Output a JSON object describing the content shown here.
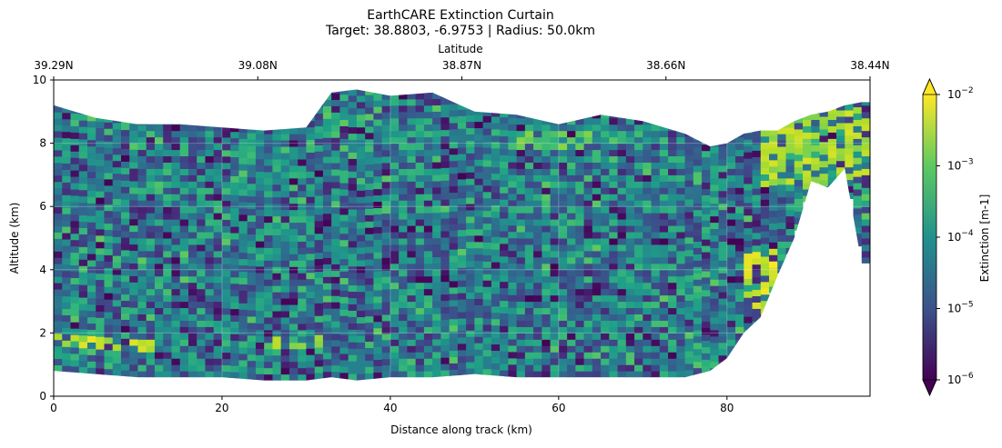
{
  "chart_data": {
    "type": "heatmap",
    "title": "EarthCARE Extinction Curtain",
    "subtitle": "Target: 38.8803, -6.9753 | Radius: 50.0km",
    "xlabel": "Distance along track (km)",
    "ylabel": "Altitude (km)",
    "top_axis_label": "Latitude",
    "xlim": [
      0,
      97
    ],
    "ylim": [
      0,
      10
    ],
    "x_ticks": [
      0,
      20,
      40,
      60,
      80
    ],
    "x_tick_labels": [
      "0",
      "20",
      "40",
      "60",
      "80"
    ],
    "y_ticks": [
      0,
      2,
      4,
      6,
      8,
      10
    ],
    "y_tick_labels": [
      "0",
      "2",
      "4",
      "6",
      "8",
      "10"
    ],
    "top_ticks": [
      0,
      24.25,
      48.5,
      72.75,
      97
    ],
    "top_tick_labels": [
      "39.29N",
      "39.08N",
      "38.87N",
      "38.66N",
      "38.44N"
    ],
    "colorbar": {
      "label": "Extinction [m-1]",
      "scale": "log",
      "range": [
        1e-06,
        0.01
      ],
      "tick_values": [
        1e-06,
        1e-05,
        0.0001,
        0.001,
        0.01
      ],
      "tick_labels": [
        {
          "base": "10",
          "exp": "−6"
        },
        {
          "base": "10",
          "exp": "−5"
        },
        {
          "base": "10",
          "exp": "−4"
        },
        {
          "base": "10",
          "exp": "−3"
        },
        {
          "base": "10",
          "exp": "−2"
        }
      ],
      "colormap": "viridis",
      "extend": "both"
    },
    "grid": true,
    "curtain_bounds": {
      "x": [
        0,
        5,
        10,
        15,
        20,
        25,
        30,
        33,
        36,
        40,
        45,
        50,
        55,
        60,
        65,
        70,
        75,
        78,
        80,
        82,
        84,
        86,
        88,
        90,
        92,
        94,
        96,
        97
      ],
      "top_km": [
        9.2,
        8.8,
        8.6,
        8.6,
        8.5,
        8.4,
        8.5,
        9.6,
        9.7,
        9.5,
        9.6,
        9.0,
        8.9,
        8.6,
        8.9,
        8.7,
        8.3,
        7.9,
        8.0,
        8.3,
        8.4,
        8.4,
        8.7,
        8.9,
        9.0,
        9.2,
        9.3,
        9.3
      ],
      "bottom_km": [
        0.8,
        0.7,
        0.6,
        0.6,
        0.6,
        0.5,
        0.5,
        0.6,
        0.5,
        0.6,
        0.6,
        0.7,
        0.6,
        0.6,
        0.6,
        0.6,
        0.6,
        0.8,
        1.2,
        2.0,
        2.5,
        3.8,
        5.0,
        6.8,
        6.6,
        7.2,
        4.2,
        4.2
      ]
    },
    "layers": [
      {
        "x_range": [
          0,
          12
        ],
        "alt_range": [
          1.4,
          1.8
        ],
        "extinction": 0.004
      },
      {
        "x_range": [
          26,
          32
        ],
        "alt_range": [
          1.4,
          1.8
        ],
        "extinction": 0.003
      },
      {
        "x_range": [
          54,
          64
        ],
        "alt_range": [
          7.8,
          8.4
        ],
        "extinction": 0.001
      },
      {
        "x_range": [
          84,
          97
        ],
        "alt_range": [
          6.5,
          9.0
        ],
        "extinction": 0.003
      },
      {
        "x_range": [
          82,
          86
        ],
        "alt_range": [
          2.6,
          4.5
        ],
        "extinction": 0.005
      }
    ],
    "background_extinction_range": [
      1e-06,
      0.001
    ],
    "dominant_extinction": 5e-05
  }
}
